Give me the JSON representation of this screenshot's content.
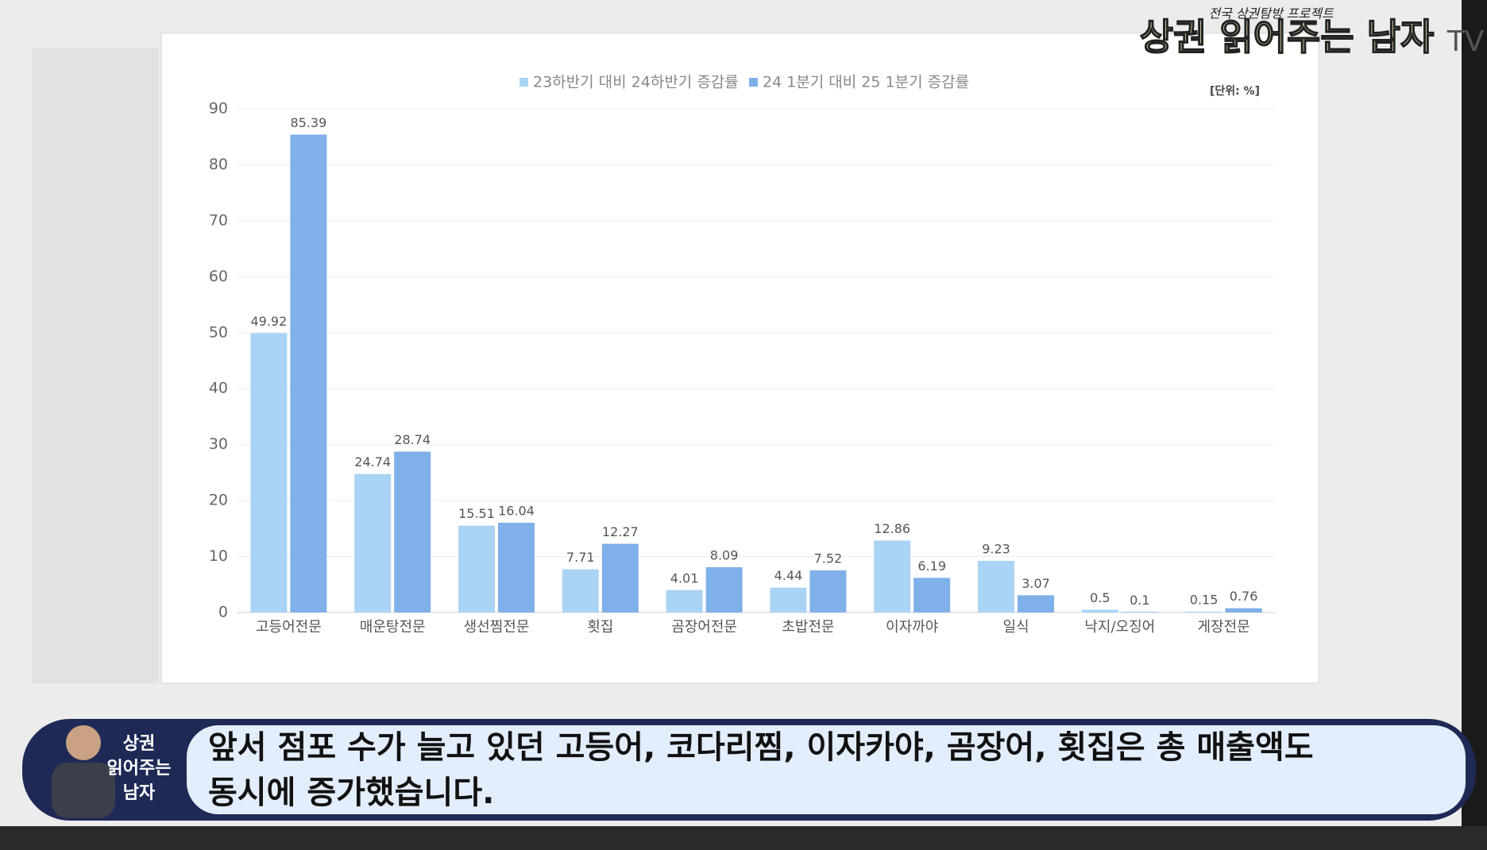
{
  "chart_data": {
    "type": "bar",
    "unit_label": "[단위: %]",
    "categories": [
      "고등어전문",
      "매운탕전문",
      "생선찜전문",
      "횟집",
      "곰장어전문",
      "초밥전문",
      "이자까야",
      "일식",
      "낙지/오징어",
      "게장전문"
    ],
    "series": [
      {
        "name": "23하반기 대비 24하반기 증감률",
        "color": "#aad4f5",
        "values": [
          49.92,
          24.74,
          15.51,
          7.71,
          4.01,
          4.44,
          12.86,
          9.23,
          0.5,
          0.15
        ]
      },
      {
        "name": "24 1분기 대비 25 1분기 증감률",
        "color": "#7fb0ea",
        "values": [
          85.39,
          28.74,
          16.04,
          12.27,
          8.09,
          7.52,
          6.19,
          3.07,
          0.1,
          0.76
        ]
      }
    ],
    "ylim": [
      0,
      90
    ],
    "yticks": [
      0,
      10,
      20,
      30,
      40,
      50,
      60,
      70,
      80,
      90
    ],
    "grid": true,
    "legend": "top"
  },
  "logo": {
    "tagline": "전국 상권탐방 프로젝트",
    "name": "상권 읽어주는 남자",
    "suffix": "TV"
  },
  "badge": {
    "lines": [
      "상권",
      "읽어주는",
      "남자"
    ]
  },
  "caption": {
    "lines": [
      "앞서 점포 수가 늘고 있던 고등어, 코다리찜, 이자카야, 곰장어, 횟집은 총 매출액도",
      "동시에 증가했습니다."
    ]
  }
}
